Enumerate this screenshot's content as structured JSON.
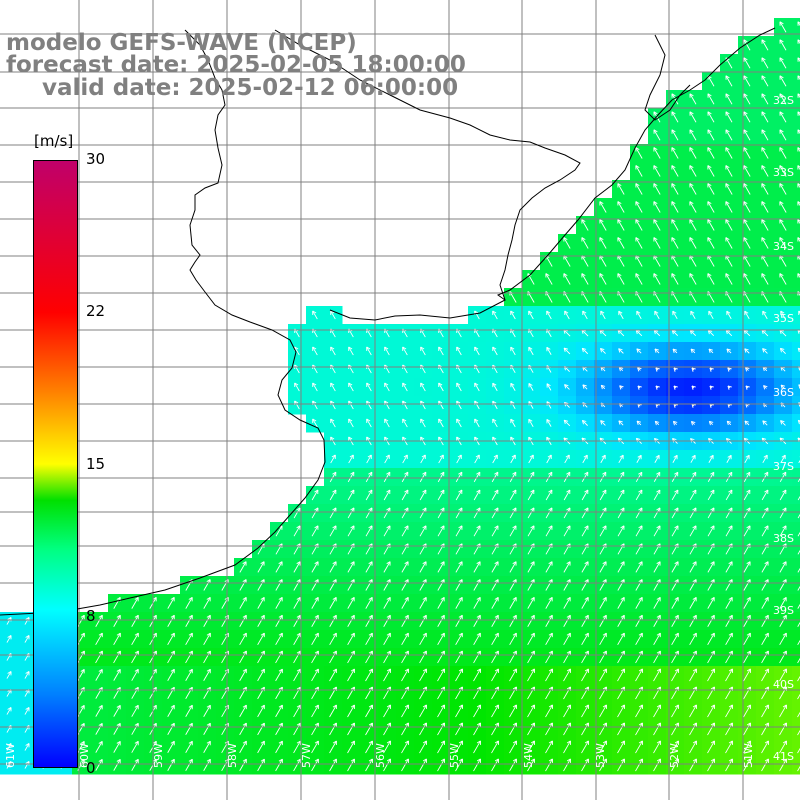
{
  "title": {
    "line1": "modelo GEFS-WAVE (NCEP)",
    "line2": "forecast date: 2025-02-05 18:00:00",
    "line3": "valid date: 2025-02-12 06:00:00"
  },
  "colorbar": {
    "unit": "[m/s]",
    "ticks": [
      "30",
      "22",
      "15",
      "8",
      "0"
    ],
    "min": 0,
    "max": 30,
    "colors": [
      "#0000ff",
      "#00c0ff",
      "#00ffff",
      "#00ff00",
      "#ffff00",
      "#ff8000",
      "#ff0000",
      "#c0006a"
    ]
  },
  "lat_labels": [
    "32S",
    "33S",
    "34S",
    "35S",
    "36S",
    "37S",
    "38S",
    "39S",
    "40S",
    "41S"
  ],
  "lon_labels": [
    "61W",
    "60W",
    "59W",
    "58W",
    "57W",
    "56W",
    "55W",
    "54W",
    "53W",
    "52W",
    "51W"
  ],
  "map_colors": {
    "land": "#ffffff",
    "grid": "#808080",
    "coast": "#000000",
    "arrows": "#ffffff"
  }
}
